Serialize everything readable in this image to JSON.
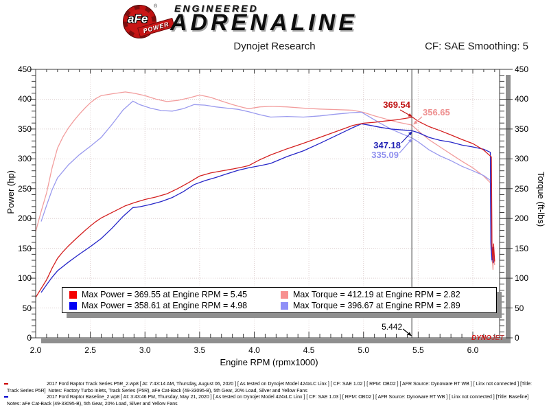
{
  "header": {
    "brand": {
      "afe": "aFe",
      "registered": "®",
      "power": "POWER",
      "engineered": "ENGINEERED",
      "adrenaline": "ADRENALINE"
    },
    "title": "Dynojet Research",
    "smoothing": "CF: SAE Smoothing: 5"
  },
  "chart_data": {
    "type": "line",
    "title": "Dynojet Research",
    "xlabel": "Engine RPM (rpmx1000)",
    "ylabel_left": "Power (hp)",
    "ylabel_right": "Torque (ft-lbs)",
    "xlim": [
      2.0,
      6.245
    ],
    "ylim": [
      0,
      450
    ],
    "x_major_tick_step": 0.5,
    "x_minor_tick_step": 0.1,
    "y_major_tick_step": 50,
    "y_minor_tick_step": 10,
    "grid": "dotted-at-major-ticks",
    "legend_position": "bottom-inside-box",
    "cursor": {
      "rpm": 5.442,
      "label": "5.442"
    },
    "series": [
      {
        "name": "power-track",
        "legend": "Max Power = 369.55 at Engine RPM = 5.45",
        "color": "#d42020",
        "swatch": "#f40000",
        "axis": "hp",
        "values": [
          [
            2.0,
            67.8
          ],
          [
            2.05,
            82.7
          ],
          [
            2.1,
            97.2
          ],
          [
            2.15,
            116.7
          ],
          [
            2.2,
            133.2
          ],
          [
            2.25,
            144.4
          ],
          [
            2.3,
            154.1
          ],
          [
            2.35,
            162.9
          ],
          [
            2.4,
            171.4
          ],
          [
            2.45,
            179.6
          ],
          [
            2.5,
            187.5
          ],
          [
            2.55,
            194.7
          ],
          [
            2.6,
            200.9
          ],
          [
            2.7,
            210.3
          ],
          [
            2.82,
            221.3
          ],
          [
            2.9,
            226.4
          ],
          [
            3.0,
            231.9
          ],
          [
            3.1,
            236.1
          ],
          [
            3.2,
            241.3
          ],
          [
            3.3,
            250.1
          ],
          [
            3.4,
            260.2
          ],
          [
            3.5,
            271.2
          ],
          [
            3.6,
            276.3
          ],
          [
            3.7,
            279.7
          ],
          [
            3.8,
            282.9
          ],
          [
            3.9,
            286.6
          ],
          [
            3.95,
            288.8
          ],
          [
            4.05,
            298.4
          ],
          [
            4.15,
            306.6
          ],
          [
            4.3,
            316.8
          ],
          [
            4.45,
            326.2
          ],
          [
            4.6,
            335.9
          ],
          [
            4.75,
            345.8
          ],
          [
            4.9,
            355.9
          ],
          [
            5.0,
            359.8
          ],
          [
            5.1,
            361.3
          ],
          [
            5.2,
            363.4
          ],
          [
            5.3,
            365.4
          ],
          [
            5.442,
            369.54
          ],
          [
            5.45,
            369.55
          ],
          [
            5.5,
            363.0
          ],
          [
            5.6,
            354.0
          ],
          [
            5.7,
            347.3
          ],
          [
            5.8,
            340.1
          ],
          [
            5.9,
            332.5
          ],
          [
            6.0,
            325.6
          ],
          [
            6.1,
            314.7
          ],
          [
            6.17,
            303.0
          ],
          [
            6.175,
            155
          ],
          [
            6.185,
            125
          ],
          [
            6.19,
            158
          ],
          [
            6.2,
            128
          ]
        ]
      },
      {
        "name": "torque-track",
        "legend": "Max Torque = 412.19 at Engine RPM = 2.82",
        "color": "#f29d9d",
        "swatch": "#f78f8f",
        "axis": "ft-lbs",
        "values": [
          [
            2.0,
            178
          ],
          [
            2.05,
            212
          ],
          [
            2.1,
            243
          ],
          [
            2.15,
            285
          ],
          [
            2.2,
            318
          ],
          [
            2.25,
            337
          ],
          [
            2.3,
            352
          ],
          [
            2.35,
            364
          ],
          [
            2.4,
            375
          ],
          [
            2.45,
            385
          ],
          [
            2.5,
            394
          ],
          [
            2.55,
            401
          ],
          [
            2.6,
            406
          ],
          [
            2.7,
            409
          ],
          [
            2.82,
            412.19
          ],
          [
            2.9,
            410
          ],
          [
            3.0,
            406
          ],
          [
            3.1,
            400
          ],
          [
            3.2,
            396
          ],
          [
            3.3,
            398
          ],
          [
            3.4,
            402
          ],
          [
            3.5,
            407
          ],
          [
            3.6,
            403
          ],
          [
            3.7,
            397
          ],
          [
            3.8,
            391
          ],
          [
            3.9,
            386
          ],
          [
            3.95,
            384
          ],
          [
            4.05,
            387
          ],
          [
            4.15,
            388
          ],
          [
            4.3,
            387
          ],
          [
            4.45,
            385
          ],
          [
            4.6,
            383.5
          ],
          [
            4.75,
            382.5
          ],
          [
            4.9,
            381.5
          ],
          [
            5.0,
            378
          ],
          [
            5.1,
            372
          ],
          [
            5.2,
            367
          ],
          [
            5.3,
            362
          ],
          [
            5.442,
            356.65
          ],
          [
            5.5,
            347
          ],
          [
            5.6,
            332
          ],
          [
            5.7,
            320
          ],
          [
            5.8,
            308
          ],
          [
            5.9,
            296
          ],
          [
            6.0,
            285
          ],
          [
            6.1,
            271
          ],
          [
            6.17,
            258
          ],
          [
            6.175,
            140
          ],
          [
            6.185,
            114
          ],
          [
            6.19,
            150
          ],
          [
            6.2,
            122
          ]
        ]
      },
      {
        "name": "power-baseline",
        "legend": "Max Power = 358.61 at Engine RPM = 4.98",
        "color": "#2626c8",
        "swatch": "#0000f4",
        "axis": "hp",
        "values": [
          [
            2.05,
            76.1
          ],
          [
            2.1,
            88.8
          ],
          [
            2.15,
            101.5
          ],
          [
            2.2,
            112.3
          ],
          [
            2.3,
            127.0
          ],
          [
            2.4,
            140.3
          ],
          [
            2.5,
            152.8
          ],
          [
            2.6,
            166.4
          ],
          [
            2.7,
            184.0
          ],
          [
            2.8,
            203.6
          ],
          [
            2.89,
            218.3
          ],
          [
            2.95,
            219.6
          ],
          [
            3.05,
            223.6
          ],
          [
            3.15,
            228.5
          ],
          [
            3.25,
            235.2
          ],
          [
            3.35,
            244.9
          ],
          [
            3.45,
            256.9
          ],
          [
            3.55,
            263.6
          ],
          [
            3.65,
            268.9
          ],
          [
            3.75,
            274.9
          ],
          [
            3.85,
            280.7
          ],
          [
            3.95,
            285.0
          ],
          [
            4.05,
            288.4
          ],
          [
            4.15,
            292.3
          ],
          [
            4.3,
            303.8
          ],
          [
            4.45,
            313.5
          ],
          [
            4.6,
            325.9
          ],
          [
            4.75,
            339.1
          ],
          [
            4.9,
            352.2
          ],
          [
            4.98,
            358.61
          ],
          [
            5.05,
            356.5
          ],
          [
            5.15,
            353.0
          ],
          [
            5.25,
            350.0
          ],
          [
            5.35,
            348.5
          ],
          [
            5.442,
            347.18
          ],
          [
            5.5,
            344.0
          ],
          [
            5.6,
            336.0
          ],
          [
            5.7,
            331.0
          ],
          [
            5.8,
            328.0
          ],
          [
            5.9,
            323.0
          ],
          [
            6.0,
            320.0
          ],
          [
            6.1,
            316.0
          ],
          [
            6.16,
            311.0
          ],
          [
            6.165,
            160
          ],
          [
            6.175,
            130
          ],
          [
            6.185,
            152
          ],
          [
            6.19,
            126
          ]
        ]
      },
      {
        "name": "torque-baseline",
        "legend": "Max Torque = 396.67 at Engine RPM = 2.89",
        "color": "#9a9aee",
        "swatch": "#8f8ff7",
        "axis": "ft-lbs",
        "values": [
          [
            2.05,
            195
          ],
          [
            2.1,
            222
          ],
          [
            2.15,
            248
          ],
          [
            2.2,
            268
          ],
          [
            2.3,
            290
          ],
          [
            2.4,
            307
          ],
          [
            2.5,
            321
          ],
          [
            2.6,
            336
          ],
          [
            2.7,
            358
          ],
          [
            2.8,
            382
          ],
          [
            2.89,
            396.67
          ],
          [
            2.95,
            391
          ],
          [
            3.05,
            385
          ],
          [
            3.15,
            381
          ],
          [
            3.25,
            380
          ],
          [
            3.35,
            384
          ],
          [
            3.45,
            391
          ],
          [
            3.55,
            390
          ],
          [
            3.65,
            387
          ],
          [
            3.75,
            385
          ],
          [
            3.85,
            383
          ],
          [
            3.95,
            379
          ],
          [
            4.05,
            374
          ],
          [
            4.15,
            370
          ],
          [
            4.3,
            371
          ],
          [
            4.45,
            370
          ],
          [
            4.6,
            372
          ],
          [
            4.75,
            375
          ],
          [
            4.9,
            377.5
          ],
          [
            4.98,
            378.3
          ],
          [
            5.05,
            370.8
          ],
          [
            5.15,
            360.0
          ],
          [
            5.25,
            350.0
          ],
          [
            5.35,
            342.0
          ],
          [
            5.442,
            335.09
          ],
          [
            5.5,
            328.5
          ],
          [
            5.6,
            315.0
          ],
          [
            5.7,
            305.0
          ],
          [
            5.8,
            297.0
          ],
          [
            5.9,
            287.5
          ],
          [
            6.0,
            280.0
          ],
          [
            6.1,
            272.0
          ],
          [
            6.16,
            264.0
          ],
          [
            6.165,
            150
          ],
          [
            6.175,
            128
          ],
          [
            6.185,
            145
          ],
          [
            6.19,
            125
          ]
        ]
      }
    ],
    "annotations": [
      {
        "text": "369.54",
        "value": 369.54,
        "color": "#c01212",
        "series": "power-track"
      },
      {
        "text": "356.65",
        "value": 356.65,
        "color": "#ee8f8f",
        "series": "torque-track"
      },
      {
        "text": "347.18",
        "value": 347.18,
        "color": "#2020b4",
        "series": "power-baseline"
      },
      {
        "text": "335.09",
        "value": 335.09,
        "color": "#8f8fee",
        "series": "torque-baseline"
      }
    ]
  },
  "legend": {
    "entries": [
      {
        "swatch": "#f40000",
        "label": "Max Power = 369.55 at Engine RPM = 5.45"
      },
      {
        "swatch": "#f78f8f",
        "label": "Max Torque = 412.19 at Engine RPM = 2.82"
      },
      {
        "swatch": "#0000f4",
        "label": "Max Power = 358.61 at Engine RPM = 4.98"
      },
      {
        "swatch": "#8f8ff7",
        "label": "Max Torque = 396.67 at Engine RPM = 2.89"
      }
    ]
  },
  "watermark": {
    "part1": "DYNO",
    "part2": "JET"
  },
  "footer": {
    "entries": [
      {
        "marker_color": "#cc0000",
        "lines": [
          "2017 Ford Raptor Track Series P5R_2.wp8 [ At: 7:43:14 AM, Thursday, August 06, 2020 ] [ As tested on Dynojet Model 424xLC Linx ] [ CF: SAE 1.02 ] [ RPM: OBD2 ] [ AFR Source: Dynoware RT WB ] [ Linx not connected ] [Title:",
          "Track Series P5R]  Notes: Factory Turbo Inlets, Track Series (P5R), aFe Cat-Back (49-33095-B), 5th Gear, 20% Load, Silver and Yellow Fans"
        ]
      },
      {
        "marker_color": "#0000cc",
        "lines": [
          "2017 Ford Raptor Baseline_2.wp8 [ At: 3:43:46 PM, Thursday, May 21, 2020 ] [ As tested on Dynojet Model 424xLC Linx ] [ CF: SAE 1.03 ] [ RPM: OBD2 ] [ AFR Source: Dynoware RT WB ] [ Linx not connected ] [Title: Baseline]",
          "Notes: aFe Cat-Back (49-33095-B), 5th Gear, 20% Load, Silver and Yellow Fans"
        ]
      }
    ]
  }
}
